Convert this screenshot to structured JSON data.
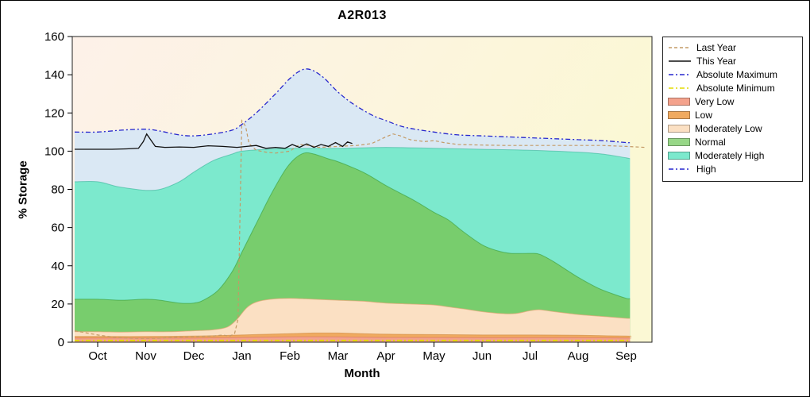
{
  "title": "A2R013",
  "x_axis": {
    "label": "Month",
    "ticks": [
      "Oct",
      "Nov",
      "Dec",
      "Jan",
      "Feb",
      "Mar",
      "Apr",
      "May",
      "Jun",
      "Jul",
      "Aug",
      "Sep"
    ]
  },
  "y_axis": {
    "label": "% Storage",
    "ticks": [
      0,
      20,
      40,
      60,
      80,
      100,
      120,
      140,
      160
    ]
  },
  "legend": {
    "items": [
      {
        "label": "Last Year",
        "swatch": "line",
        "color": "#c49a66",
        "dash": "4 3"
      },
      {
        "label": "This Year",
        "swatch": "line",
        "color": "#101010",
        "dash": ""
      },
      {
        "label": "Absolute Maximum",
        "swatch": "line",
        "color": "#2626cd",
        "dash": "6 3 2 3"
      },
      {
        "label": "Absolute Minimum",
        "swatch": "line",
        "color": "#e4dc00",
        "dash": "6 3 2 3"
      },
      {
        "label": "Very Low",
        "swatch": "box",
        "color": "#f4a28c"
      },
      {
        "label": "Low",
        "swatch": "box",
        "color": "#f0aa60"
      },
      {
        "label": "Moderately Low",
        "swatch": "box",
        "color": "#fbe0c3"
      },
      {
        "label": "Normal",
        "swatch": "box",
        "color": "#97d787"
      },
      {
        "label": "Moderately High",
        "swatch": "box",
        "color": "#7ce9cd"
      },
      {
        "label": "High",
        "swatch": "line",
        "color": "#2626cd",
        "dash": "6 3 2 3"
      }
    ]
  },
  "chart_data": {
    "type": "area",
    "title": "A2R013",
    "xlabel": "Month",
    "ylabel": "% Storage",
    "ylim": [
      0,
      160
    ],
    "x_categories": [
      "Oct",
      "Nov",
      "Dec",
      "Jan",
      "Feb",
      "Mar",
      "Apr",
      "May",
      "Jun",
      "Jul",
      "Aug",
      "Sep"
    ],
    "y_ticks": [
      0,
      20,
      40,
      60,
      80,
      100,
      120,
      140,
      160
    ],
    "background": {
      "left_tint": "#fdf1e9",
      "right_tint": "#fbf8d4"
    },
    "bands": [
      {
        "name": "High",
        "color": "#dae8f4",
        "stroke": "",
        "points": [
          [
            -0.48,
            110
          ],
          [
            0,
            110
          ],
          [
            0.5,
            111
          ],
          [
            1,
            111.5
          ],
          [
            1.3,
            110.5
          ],
          [
            1.7,
            108.5
          ],
          [
            2,
            108
          ],
          [
            2.4,
            109
          ],
          [
            2.8,
            111
          ],
          [
            3,
            114
          ],
          [
            3.3,
            120
          ],
          [
            3.7,
            130
          ],
          [
            4,
            138
          ],
          [
            4.25,
            142.5
          ],
          [
            4.45,
            142.5
          ],
          [
            4.7,
            138.5
          ],
          [
            5,
            131
          ],
          [
            5.3,
            125
          ],
          [
            5.7,
            119
          ],
          [
            6,
            116
          ],
          [
            6.4,
            112.5
          ],
          [
            7,
            110
          ],
          [
            7.5,
            108.5
          ],
          [
            8,
            108
          ],
          [
            8.5,
            107.5
          ],
          [
            9,
            107
          ],
          [
            9.5,
            106.5
          ],
          [
            10,
            106
          ],
          [
            10.5,
            105.5
          ],
          [
            11,
            104.5
          ],
          [
            11.08,
            104.5
          ]
        ]
      },
      {
        "name": "Moderately High",
        "color": "#7ce9cd",
        "stroke": "rgba(35,170,140,0.5)",
        "points": [
          [
            -0.48,
            84
          ],
          [
            0,
            84
          ],
          [
            0.4,
            81.5
          ],
          [
            0.8,
            80
          ],
          [
            1,
            79.5
          ],
          [
            1.3,
            80
          ],
          [
            1.7,
            84
          ],
          [
            2,
            89
          ],
          [
            2.4,
            95
          ],
          [
            2.8,
            98.5
          ],
          [
            3,
            100
          ],
          [
            3.5,
            101
          ],
          [
            4,
            101.5
          ],
          [
            5,
            101.5
          ],
          [
            6,
            102
          ],
          [
            7,
            101.5
          ],
          [
            8,
            101
          ],
          [
            9,
            100.5
          ],
          [
            10,
            99.5
          ],
          [
            10.5,
            98.5
          ],
          [
            11,
            96.5
          ],
          [
            11.08,
            96
          ]
        ]
      },
      {
        "name": "Normal",
        "color": "rgba(120,200,92,0.85)",
        "stroke": "rgba(55,155,55,0.6)",
        "points": [
          [
            -0.48,
            22.5
          ],
          [
            0,
            22.5
          ],
          [
            0.5,
            22
          ],
          [
            1,
            22.5
          ],
          [
            1.3,
            22
          ],
          [
            1.7,
            20.5
          ],
          [
            2,
            20.5
          ],
          [
            2.2,
            22
          ],
          [
            2.5,
            27
          ],
          [
            2.8,
            37
          ],
          [
            3,
            47
          ],
          [
            3.3,
            62
          ],
          [
            3.6,
            77
          ],
          [
            3.9,
            90
          ],
          [
            4.1,
            96
          ],
          [
            4.3,
            99
          ],
          [
            4.5,
            98.5
          ],
          [
            4.8,
            96
          ],
          [
            5,
            94.5
          ],
          [
            5.3,
            91.5
          ],
          [
            5.6,
            88
          ],
          [
            6,
            82
          ],
          [
            6.3,
            78
          ],
          [
            6.6,
            74
          ],
          [
            7,
            68
          ],
          [
            7.3,
            64
          ],
          [
            7.6,
            58
          ],
          [
            8,
            51
          ],
          [
            8.3,
            48
          ],
          [
            8.6,
            46.5
          ],
          [
            9,
            46.5
          ],
          [
            9.2,
            46
          ],
          [
            9.5,
            42
          ],
          [
            10,
            34
          ],
          [
            10.4,
            28.5
          ],
          [
            10.7,
            25.5
          ],
          [
            11,
            23
          ],
          [
            11.08,
            22.8
          ]
        ]
      },
      {
        "name": "Moderately Low",
        "color": "#fbe0c3",
        "stroke": "rgba(225,165,115,0.7)",
        "points": [
          [
            -0.48,
            5.5
          ],
          [
            0,
            5.5
          ],
          [
            0.5,
            5.3
          ],
          [
            1,
            5.5
          ],
          [
            1.5,
            5.5
          ],
          [
            2,
            6
          ],
          [
            2.4,
            6.5
          ],
          [
            2.7,
            8
          ],
          [
            2.9,
            12
          ],
          [
            3.1,
            18
          ],
          [
            3.3,
            21
          ],
          [
            3.6,
            22.5
          ],
          [
            4,
            23
          ],
          [
            4.5,
            22.5
          ],
          [
            5,
            22
          ],
          [
            5.5,
            21.5
          ],
          [
            6,
            20.5
          ],
          [
            6.5,
            20
          ],
          [
            7,
            19.5
          ],
          [
            7.3,
            18.5
          ],
          [
            7.6,
            17.5
          ],
          [
            8,
            16
          ],
          [
            8.4,
            15
          ],
          [
            8.7,
            15
          ],
          [
            9,
            16.5
          ],
          [
            9.2,
            17
          ],
          [
            9.5,
            16
          ],
          [
            10,
            14.5
          ],
          [
            10.5,
            13.5
          ],
          [
            11,
            12.5
          ],
          [
            11.08,
            12.5
          ]
        ]
      },
      {
        "name": "Low",
        "color": "#f0aa60",
        "stroke": "rgba(205,135,60,0.6)",
        "points": [
          [
            -0.48,
            3
          ],
          [
            0,
            3
          ],
          [
            1,
            3
          ],
          [
            2,
            3.2
          ],
          [
            3,
            3.8
          ],
          [
            4,
            4.5
          ],
          [
            4.5,
            4.8
          ],
          [
            5,
            4.8
          ],
          [
            5.5,
            4.5
          ],
          [
            6,
            4.2
          ],
          [
            7,
            4
          ],
          [
            8,
            3.8
          ],
          [
            9,
            3.8
          ],
          [
            10,
            3.6
          ],
          [
            11,
            3.2
          ],
          [
            11.08,
            3.2
          ]
        ]
      },
      {
        "name": "Very Low",
        "color": "#f4a28c",
        "stroke": "rgba(215,115,90,0.6)",
        "points": [
          [
            -0.48,
            2.2
          ],
          [
            0,
            2.2
          ],
          [
            2,
            2.2
          ],
          [
            4,
            2.8
          ],
          [
            5,
            2.8
          ],
          [
            6,
            2.5
          ],
          [
            8,
            2.4
          ],
          [
            10,
            2.4
          ],
          [
            11,
            2.2
          ],
          [
            11.08,
            2.2
          ]
        ]
      }
    ],
    "lines": [
      {
        "name": "Absolute Minimum",
        "color": "#e4dc00",
        "dash": "6 3 2 3",
        "width": 1.8,
        "smooth": false,
        "points": [
          [
            -0.48,
            0.9
          ],
          [
            11.08,
            0.9
          ]
        ]
      },
      {
        "name": "Absolute Maximum",
        "color": "#2626cd",
        "dash": "6 3 2 3",
        "width": 1.3,
        "smooth": true,
        "points": [
          [
            -0.48,
            110
          ],
          [
            0,
            110
          ],
          [
            0.5,
            111
          ],
          [
            1,
            111.5
          ],
          [
            1.3,
            110.5
          ],
          [
            1.7,
            108.5
          ],
          [
            2,
            108
          ],
          [
            2.4,
            109
          ],
          [
            2.8,
            111
          ],
          [
            3,
            114
          ],
          [
            3.3,
            120
          ],
          [
            3.7,
            130
          ],
          [
            4,
            138
          ],
          [
            4.25,
            142.5
          ],
          [
            4.45,
            142.5
          ],
          [
            4.7,
            138.5
          ],
          [
            5,
            131
          ],
          [
            5.3,
            125
          ],
          [
            5.7,
            119
          ],
          [
            6,
            116
          ],
          [
            6.4,
            112.5
          ],
          [
            7,
            110
          ],
          [
            7.5,
            108.5
          ],
          [
            8,
            108
          ],
          [
            8.5,
            107.5
          ],
          [
            9,
            107
          ],
          [
            9.5,
            106.5
          ],
          [
            10,
            106
          ],
          [
            10.5,
            105.5
          ],
          [
            11,
            104.5
          ],
          [
            11.08,
            104.5
          ]
        ]
      },
      {
        "name": "Last Year",
        "color": "#c49a66",
        "dash": "4 3",
        "width": 1.2,
        "smooth": false,
        "points": [
          [
            -0.48,
            6
          ],
          [
            0,
            3.8
          ],
          [
            0.4,
            2.4
          ],
          [
            0.8,
            2
          ],
          [
            1.2,
            2
          ],
          [
            1.6,
            2.6
          ],
          [
            2,
            3
          ],
          [
            2.4,
            3.2
          ],
          [
            2.6,
            3.8
          ],
          [
            2.75,
            3.2
          ],
          [
            2.85,
            4.5
          ],
          [
            2.92,
            12
          ],
          [
            3,
            116
          ],
          [
            3.08,
            113
          ],
          [
            3.15,
            104
          ],
          [
            3.3,
            100.5
          ],
          [
            3.5,
            99.5
          ],
          [
            3.7,
            99
          ],
          [
            4,
            100
          ],
          [
            4.2,
            103.5
          ],
          [
            4.4,
            103
          ],
          [
            4.6,
            102
          ],
          [
            5,
            102.5
          ],
          [
            5.4,
            103
          ],
          [
            5.7,
            104
          ],
          [
            6,
            107.5
          ],
          [
            6.15,
            109
          ],
          [
            6.3,
            108
          ],
          [
            6.5,
            106
          ],
          [
            6.8,
            105
          ],
          [
            7,
            105.5
          ],
          [
            7.2,
            104.5
          ],
          [
            7.5,
            103.5
          ],
          [
            8,
            103.2
          ],
          [
            8.5,
            103
          ],
          [
            9,
            103
          ],
          [
            10,
            103
          ],
          [
            10.5,
            103
          ],
          [
            11,
            102.5
          ],
          [
            11.4,
            102
          ]
        ]
      },
      {
        "name": "This Year",
        "color": "#101010",
        "dash": "",
        "width": 1.3,
        "smooth": false,
        "points": [
          [
            -0.48,
            101
          ],
          [
            0,
            101
          ],
          [
            0.3,
            101
          ],
          [
            0.6,
            101.2
          ],
          [
            0.85,
            101.5
          ],
          [
            0.95,
            105
          ],
          [
            1.02,
            109
          ],
          [
            1.1,
            106
          ],
          [
            1.2,
            102.5
          ],
          [
            1.4,
            102
          ],
          [
            1.7,
            102.2
          ],
          [
            2,
            102
          ],
          [
            2.3,
            102.8
          ],
          [
            2.6,
            102.5
          ],
          [
            2.9,
            102
          ],
          [
            3.1,
            102.5
          ],
          [
            3.3,
            103
          ],
          [
            3.5,
            101.5
          ],
          [
            3.7,
            102
          ],
          [
            3.9,
            101.5
          ],
          [
            4.05,
            103.5
          ],
          [
            4.2,
            102
          ],
          [
            4.35,
            103.8
          ],
          [
            4.5,
            102
          ],
          [
            4.65,
            103.5
          ],
          [
            4.8,
            102.5
          ],
          [
            4.95,
            104.5
          ],
          [
            5.1,
            102.5
          ],
          [
            5.2,
            104.8
          ],
          [
            5.3,
            104
          ]
        ]
      }
    ]
  }
}
